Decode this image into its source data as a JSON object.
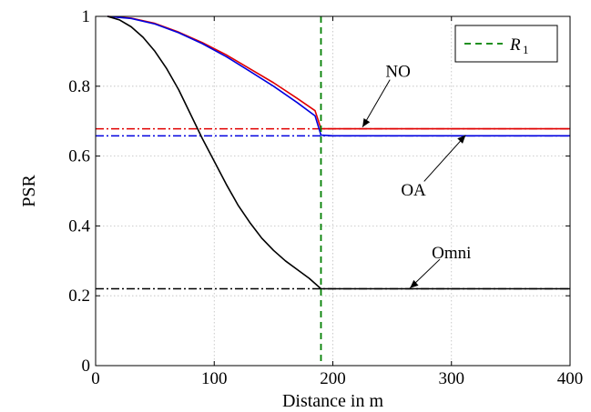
{
  "chart_data": {
    "type": "line",
    "title": "",
    "xlabel": "Distance in m",
    "ylabel": "PSR",
    "xlim": [
      0,
      400
    ],
    "ylim": [
      0,
      1
    ],
    "xticks": [
      0,
      100,
      200,
      300,
      400
    ],
    "yticks": [
      0,
      0.2,
      0.4,
      0.6,
      0.8,
      1
    ],
    "xtick_labels": [
      "0",
      "100",
      "200",
      "300",
      "400"
    ],
    "ytick_labels": [
      "0",
      "0.2",
      "0.4",
      "0.6",
      "0.8",
      "1"
    ],
    "grid": true,
    "legend_position": "top-right",
    "legend": [
      {
        "label": "R",
        "subscript": "1",
        "color": "#008000",
        "style": "dashed"
      }
    ],
    "vertical_lines": [
      {
        "label": "R1",
        "x": 190,
        "color": "#008000",
        "style": "dashed"
      }
    ],
    "series": [
      {
        "name": "NO",
        "color": "#e00000",
        "x": [
          10,
          30,
          50,
          70,
          90,
          110,
          130,
          150,
          170,
          185,
          190,
          200,
          250,
          300,
          350,
          400
        ],
        "y": [
          1.0,
          0.995,
          0.98,
          0.955,
          0.925,
          0.89,
          0.85,
          0.81,
          0.765,
          0.73,
          0.678,
          0.678,
          0.678,
          0.678,
          0.678,
          0.678
        ]
      },
      {
        "name": "OA",
        "color": "#0000e0",
        "x": [
          10,
          30,
          50,
          70,
          90,
          110,
          130,
          150,
          170,
          185,
          190,
          200,
          250,
          300,
          350,
          400
        ],
        "y": [
          1.0,
          0.994,
          0.978,
          0.953,
          0.922,
          0.885,
          0.843,
          0.8,
          0.753,
          0.715,
          0.66,
          0.658,
          0.658,
          0.658,
          0.658,
          0.658
        ]
      },
      {
        "name": "Omni",
        "color": "#000000",
        "x": [
          10,
          20,
          30,
          40,
          50,
          60,
          70,
          80,
          90,
          100,
          110,
          120,
          130,
          140,
          150,
          160,
          170,
          180,
          190,
          200,
          250,
          300,
          350,
          400
        ],
        "y": [
          1.0,
          0.99,
          0.97,
          0.94,
          0.9,
          0.85,
          0.79,
          0.72,
          0.65,
          0.585,
          0.52,
          0.46,
          0.41,
          0.365,
          0.33,
          0.3,
          0.275,
          0.25,
          0.22,
          0.22,
          0.22,
          0.22,
          0.22,
          0.22
        ]
      }
    ],
    "asymptotes": [
      {
        "name": "NO",
        "y": 0.678,
        "color": "#e00000",
        "style": "dashdot"
      },
      {
        "name": "OA",
        "y": 0.658,
        "color": "#0000e0",
        "style": "dashdot"
      },
      {
        "name": "Omni",
        "y": 0.22,
        "color": "#000000",
        "style": "dashdot"
      }
    ],
    "annotations": [
      {
        "text": "NO",
        "label_x": 255,
        "label_y": 0.845,
        "arrow_x": 225,
        "arrow_y": 0.683
      },
      {
        "text": "OA",
        "label_x": 268,
        "label_y": 0.505,
        "arrow_x": 312,
        "arrow_y": 0.66
      },
      {
        "text": "Omni",
        "label_x": 300,
        "label_y": 0.325,
        "arrow_x": 265,
        "arrow_y": 0.222
      }
    ]
  }
}
